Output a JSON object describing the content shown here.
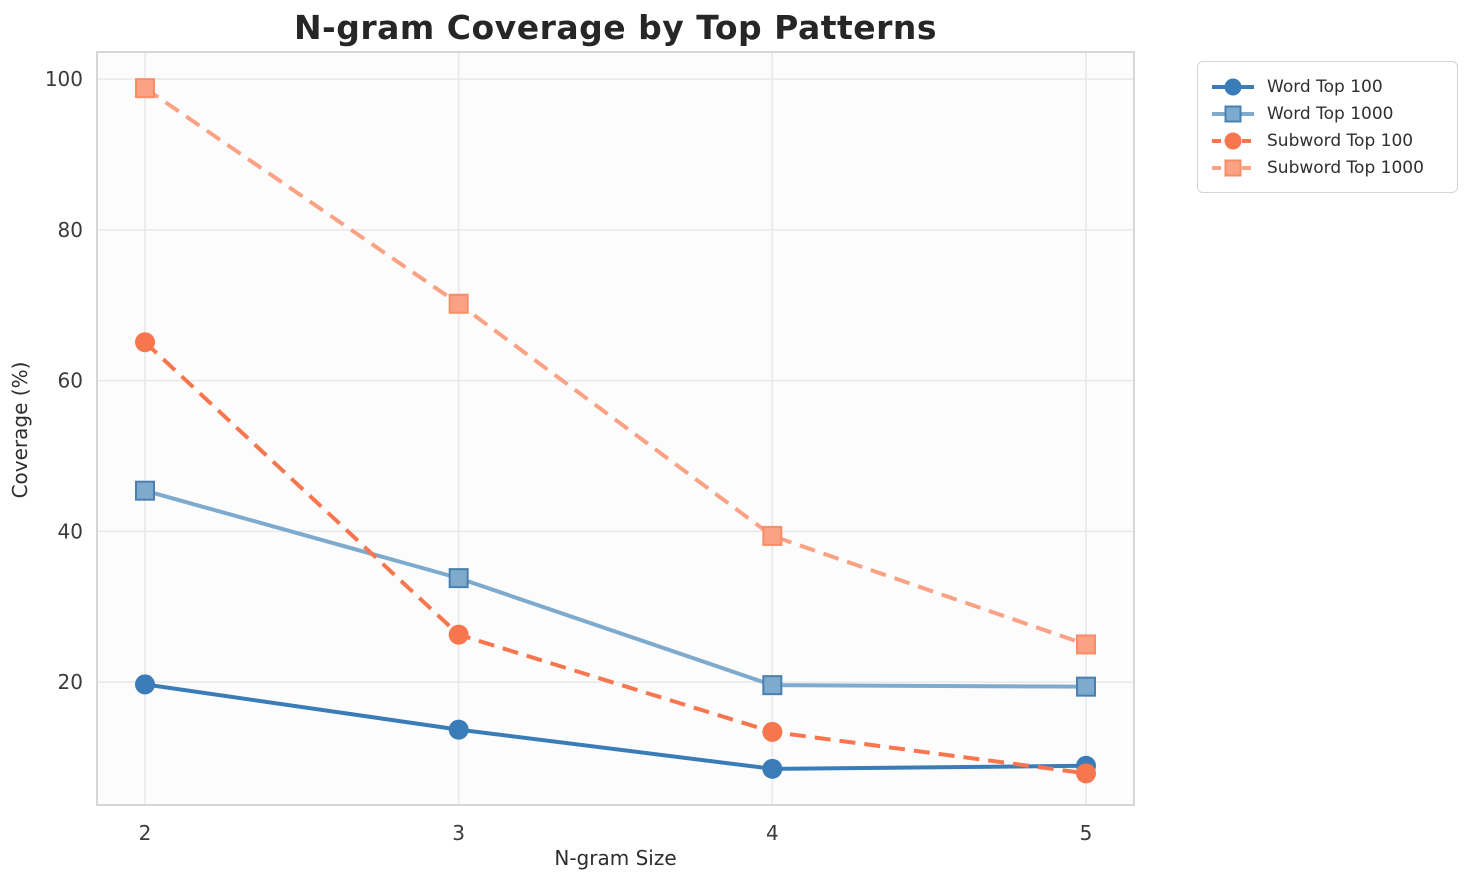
{
  "chart_data": {
    "type": "line",
    "title": "N-gram Coverage by Top Patterns",
    "xlabel": "N-gram Size",
    "ylabel": "Coverage (%)",
    "x": [
      2,
      3,
      4,
      5
    ],
    "x_tick_labels": [
      "2",
      "3",
      "4",
      "5"
    ],
    "y_ticks": [
      20,
      40,
      60,
      80,
      100
    ],
    "xlim": [
      1.847,
      5.153
    ],
    "ylim": [
      3.7,
      103.6
    ],
    "grid": true,
    "legend_position": "outside-upper-right",
    "series": [
      {
        "name": "Word Top 100",
        "values": [
          19.7,
          13.7,
          8.5,
          8.9
        ],
        "color": "#3a7cb8",
        "line_style": "solid",
        "marker": "circle"
      },
      {
        "name": "Word Top 1000",
        "values": [
          45.4,
          33.8,
          19.6,
          19.4
        ],
        "color": "#7daacd",
        "marker_edge": "#4a80b0",
        "line_style": "solid",
        "marker": "square"
      },
      {
        "name": "Subword Top 100",
        "values": [
          65.1,
          26.3,
          13.4,
          7.9
        ],
        "color": "#f7764e",
        "line_style": "dashed",
        "marker": "circle"
      },
      {
        "name": "Subword Top 1000",
        "values": [
          98.8,
          70.2,
          39.4,
          25.0
        ],
        "color": "#fba184",
        "marker_edge": "#f78d66",
        "line_style": "dashed",
        "marker": "square"
      }
    ],
    "colors": {
      "plot_background": "#fcfcfd",
      "grid": "#e9e9ec",
      "spine": "#d7d7da",
      "title_text": "#262626",
      "tick_text": "#3a3a3a"
    }
  }
}
